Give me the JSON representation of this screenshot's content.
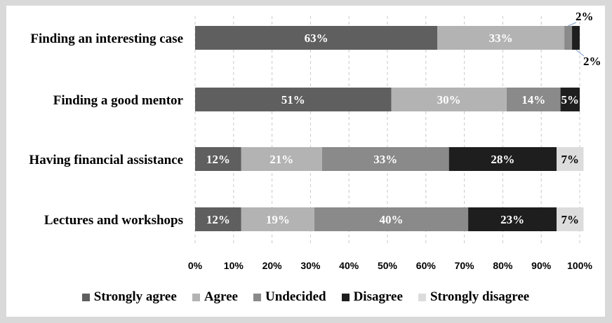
{
  "chart_data": {
    "type": "bar",
    "orientation": "horizontal",
    "stacked": true,
    "title": "",
    "xlabel": "",
    "ylabel": "",
    "xlim": [
      0,
      100
    ],
    "grid": "vertical dashed",
    "legend_position": "bottom",
    "x_ticks": [
      "0%",
      "10%",
      "20%",
      "30%",
      "40%",
      "50%",
      "60%",
      "70%",
      "80%",
      "90%",
      "100%"
    ],
    "categories": [
      "Finding an interesting case",
      "Finding a good mentor",
      "Having financial assistance",
      "Lectures and workshops"
    ],
    "series": [
      {
        "name": "Strongly agree",
        "color": "#5f5f5f",
        "values": [
          63,
          51,
          12,
          12
        ]
      },
      {
        "name": "Agree",
        "color": "#b3b3b3",
        "values": [
          33,
          30,
          21,
          19
        ]
      },
      {
        "name": "Undecided",
        "color": "#8a8a8a",
        "values": [
          2,
          14,
          33,
          40
        ]
      },
      {
        "name": "Disagree",
        "color": "#1e1e1e",
        "values": [
          2,
          5,
          28,
          23
        ]
      },
      {
        "name": "Strongly disagree",
        "color": "#dcdcdc",
        "values": [
          0,
          0,
          7,
          7
        ]
      }
    ],
    "data_labels": [
      [
        "63%",
        "33%",
        "2%",
        "2%",
        ""
      ],
      [
        "51%",
        "30%",
        "14%",
        "5%",
        ""
      ],
      [
        "12%",
        "21%",
        "33%",
        "28%",
        "7%"
      ],
      [
        "12%",
        "19%",
        "40%",
        "23%",
        "7%"
      ]
    ]
  }
}
